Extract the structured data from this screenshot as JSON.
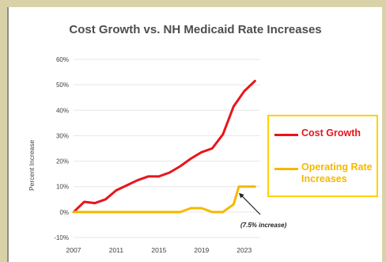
{
  "chart_data": {
    "type": "line",
    "title": "Cost Growth vs. NH Medicaid Rate Increases",
    "ylabel": "Percent Increase",
    "xlabel": "",
    "ylim": [
      -10,
      60
    ],
    "xlim": [
      2007,
      2024.5
    ],
    "yticks": [
      "-10%",
      "0%",
      "10%",
      "20%",
      "30%",
      "40%",
      "50%",
      "60%"
    ],
    "ytick_values": [
      -10,
      0,
      10,
      20,
      30,
      40,
      50,
      60
    ],
    "xticks": [
      "2007",
      "2011",
      "2015",
      "2019",
      "2023"
    ],
    "xtick_values": [
      2007,
      2011,
      2015,
      2019,
      2023
    ],
    "grid": "horizontal",
    "legend_position": "right",
    "series": [
      {
        "name": "Cost Growth",
        "color": "#e8151b",
        "x": [
          2007,
          2008,
          2009,
          2010,
          2011,
          2012,
          2013,
          2014,
          2015,
          2016,
          2017,
          2018,
          2019,
          2020,
          2021,
          2022,
          2023,
          2024
        ],
        "values": [
          0,
          4,
          3.5,
          5,
          8.5,
          10.5,
          12.5,
          14,
          14,
          15.5,
          18,
          21,
          23.5,
          25,
          30.5,
          41.5,
          47.5,
          51.5
        ]
      },
      {
        "name": "Operating Rate Increases",
        "color": "#f5b800",
        "x": [
          2007,
          2008,
          2009,
          2010,
          2011,
          2012,
          2013,
          2014,
          2015,
          2016,
          2017,
          2018,
          2019,
          2020,
          2021,
          2022,
          2022.5,
          2023,
          2024
        ],
        "values": [
          0,
          0,
          0,
          0,
          0,
          0,
          0,
          0,
          0,
          0,
          0,
          1.5,
          1.5,
          0,
          0,
          3,
          10,
          10,
          10
        ]
      }
    ],
    "annotations": [
      {
        "text": "(7.5% increase)",
        "points_to": {
          "x": 2022.5,
          "y": 10
        }
      }
    ]
  }
}
